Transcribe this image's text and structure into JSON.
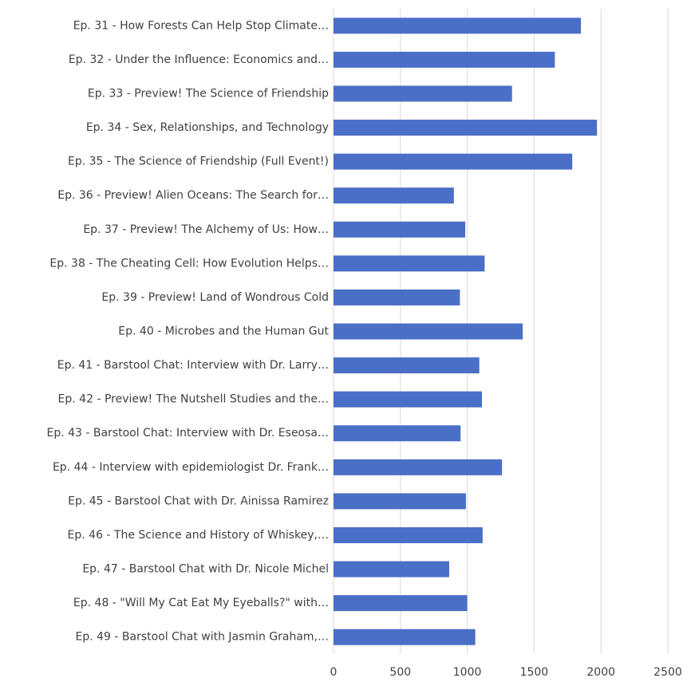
{
  "chart_data": {
    "type": "barh",
    "categories": [
      "Ep. 31 - How Forests Can Help Stop Climate…",
      "Ep. 32 - Under the Influence: Economics and…",
      "Ep. 33 - Preview! The Science of Friendship",
      "Ep. 34 - Sex, Relationships, and Technology",
      "Ep. 35 - The Science of Friendship (Full Event!)",
      "Ep. 36 - Preview! Alien Oceans: The Search for…",
      "Ep. 37 - Preview! The Alchemy of Us: How…",
      "Ep. 38 - The Cheating Cell: How Evolution Helps…",
      "Ep. 39 - Preview! Land of Wondrous Cold",
      "Ep. 40 - Microbes and the Human Gut",
      "Ep. 41 - Barstool Chat: Interview with Dr. Larry…",
      "Ep. 42 - Preview! The Nutshell Studies and the…",
      "Ep. 43 - Barstool Chat: Interview with Dr. Eseosa…",
      "Ep. 44 - Interview with epidemiologist Dr. Frank…",
      "Ep. 45 - Barstool Chat with Dr. Ainissa Ramirez",
      "Ep. 46 - The Science and History of Whiskey,…",
      "Ep. 47 - Barstool Chat with Dr. Nicole Michel",
      "Ep. 48 - \"Will My Cat Eat My Eyeballs?\" with…",
      "Ep. 49 - Barstool Chat with Jasmin Graham,…"
    ],
    "values": [
      1850,
      1655,
      1335,
      1970,
      1785,
      900,
      985,
      1130,
      945,
      1415,
      1090,
      1110,
      950,
      1260,
      990,
      1115,
      865,
      1000,
      1060
    ],
    "color": "#4a6fc7",
    "xlim": [
      0,
      2500
    ],
    "xticks": [
      0,
      500,
      1000,
      1500,
      2000,
      2500
    ],
    "grid": true
  }
}
